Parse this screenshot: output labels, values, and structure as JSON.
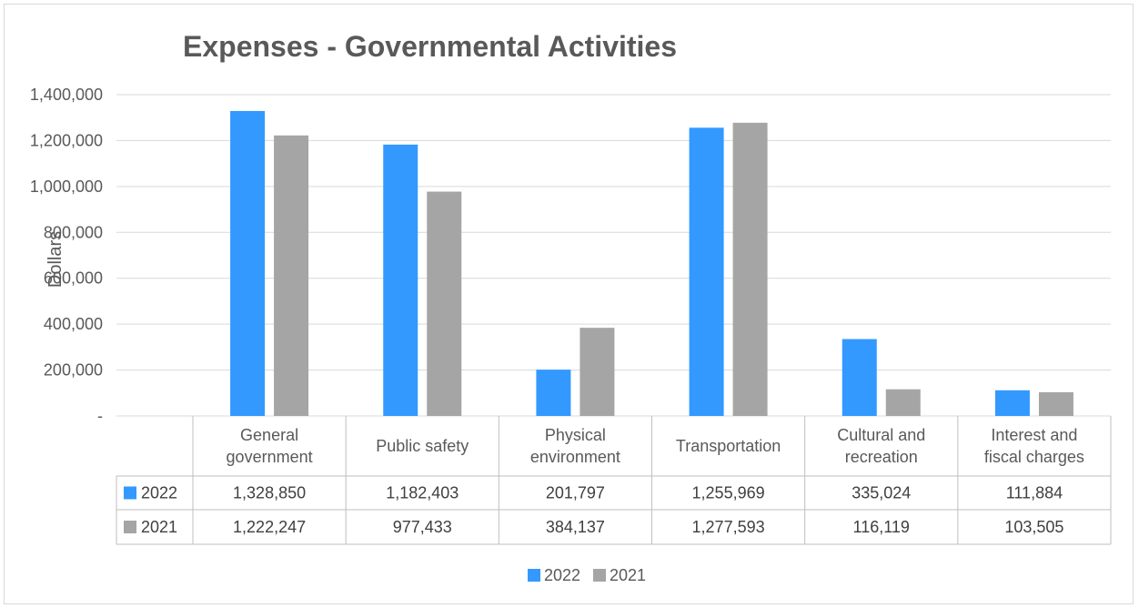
{
  "chart_data": {
    "type": "bar",
    "title": "Expenses - Governmental Activities",
    "ylabel": "Dollars",
    "xlabel": "",
    "ylim": [
      0,
      1400000
    ],
    "yticks": [
      0,
      200000,
      400000,
      600000,
      800000,
      1000000,
      1200000,
      1400000
    ],
    "ytick_labels": [
      "-",
      "200,000",
      "400,000",
      "600,000",
      "800,000",
      "1,000,000",
      "1,200,000",
      "1,400,000"
    ],
    "grid": true,
    "legend": "bottom",
    "data_table": true,
    "categories": [
      [
        "General",
        "government"
      ],
      [
        "Public safety"
      ],
      [
        "Physical",
        "environment"
      ],
      [
        "Transportation"
      ],
      [
        "Cultural and",
        "recreation"
      ],
      [
        "Interest and",
        "fiscal charges"
      ]
    ],
    "series": [
      {
        "name": "2022",
        "color": "#3399ff",
        "values": [
          1328850,
          1182403,
          201797,
          1255969,
          335024,
          111884
        ],
        "labels": [
          "1,328,850",
          "1,182,403",
          "201,797",
          "1,255,969",
          "335,024",
          "111,884"
        ]
      },
      {
        "name": "2021",
        "color": "#a5a5a5",
        "values": [
          1222247,
          977433,
          384137,
          1277593,
          116119,
          103505
        ],
        "labels": [
          "1,222,247",
          "977,433",
          "384,137",
          "1,277,593",
          "116,119",
          "103,505"
        ]
      }
    ]
  }
}
